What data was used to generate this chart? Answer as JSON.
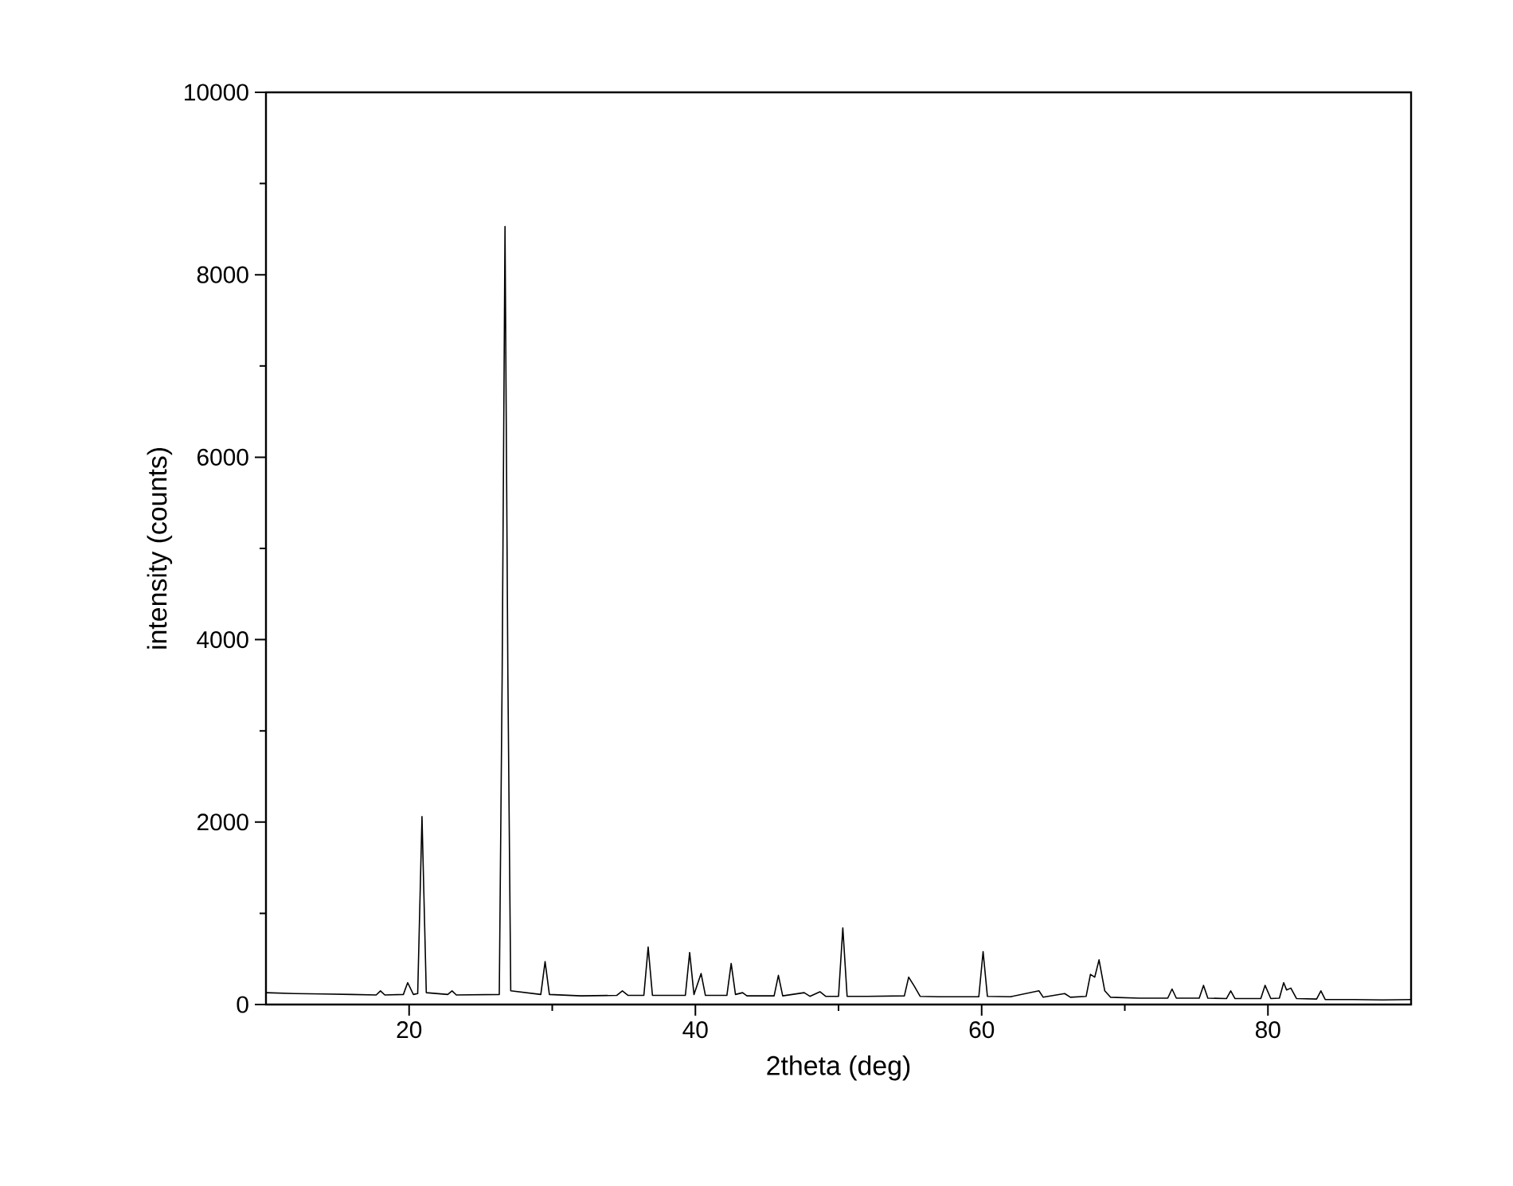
{
  "chart_data": {
    "type": "line",
    "xlabel": "2theta (deg)",
    "ylabel": "intensity (counts)",
    "xlim": [
      10,
      90
    ],
    "ylim": [
      0,
      10000
    ],
    "xticks": [
      20,
      40,
      60,
      80
    ],
    "yticks": [
      0,
      2000,
      4000,
      6000,
      8000,
      10000
    ],
    "color": "#000000",
    "x": [
      10,
      12,
      14,
      16,
      17.7,
      18.0,
      18.3,
      19.6,
      19.9,
      20.3,
      20.6,
      20.9,
      21.2,
      22.7,
      23.0,
      23.3,
      26.3,
      26.5,
      26.7,
      26.9,
      27.1,
      29.2,
      29.5,
      29.8,
      32,
      34.5,
      34.9,
      35.3,
      36.4,
      36.7,
      37.0,
      39.3,
      39.6,
      39.9,
      40.4,
      40.7,
      42.2,
      42.5,
      42.8,
      43.3,
      43.6,
      45.5,
      45.8,
      46.1,
      47.6,
      48.0,
      48.7,
      49.1,
      50.0,
      50.3,
      50.6,
      52,
      54.6,
      54.9,
      55.3,
      55.7,
      57,
      59.8,
      60.1,
      60.4,
      62,
      64.0,
      64.3,
      65.8,
      66.2,
      67.3,
      67.6,
      67.9,
      68.2,
      68.6,
      69.0,
      71,
      73.0,
      73.3,
      73.6,
      75.2,
      75.5,
      75.8,
      77.1,
      77.4,
      77.7,
      79.5,
      79.8,
      80.2,
      80.8,
      81.1,
      81.3,
      81.6,
      82.0,
      83.4,
      83.7,
      84.0,
      86,
      88,
      90
    ],
    "values": [
      130,
      120,
      115,
      110,
      105,
      150,
      105,
      110,
      240,
      110,
      120,
      2060,
      130,
      110,
      150,
      105,
      110,
      3600,
      8530,
      3600,
      150,
      110,
      470,
      110,
      95,
      100,
      150,
      100,
      100,
      630,
      100,
      100,
      570,
      110,
      340,
      100,
      100,
      450,
      110,
      130,
      95,
      95,
      320,
      95,
      130,
      90,
      140,
      90,
      90,
      840,
      90,
      90,
      95,
      300,
      200,
      90,
      85,
      85,
      580,
      90,
      85,
      150,
      80,
      120,
      80,
      90,
      330,
      300,
      490,
      150,
      80,
      70,
      70,
      170,
      70,
      70,
      210,
      70,
      65,
      150,
      65,
      65,
      210,
      65,
      70,
      240,
      160,
      180,
      65,
      60,
      150,
      55,
      55,
      50,
      55
    ]
  }
}
